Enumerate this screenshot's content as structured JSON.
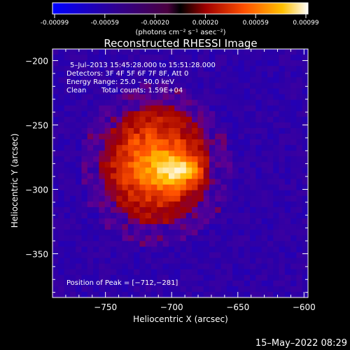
{
  "colorbar": {
    "ticks": [
      "-0.00099",
      "-0.00059",
      "-0.00020",
      "0.00020",
      "0.00059",
      "0.00099"
    ],
    "unit_label": "(photons cm⁻² s⁻¹ asec⁻²)"
  },
  "chart_data": {
    "type": "heatmap",
    "title": "Reconstructed RHESSI Image",
    "xlabel": "Heliocentric X (arcsec)",
    "ylabel": "Heliocentric Y (arcsec)",
    "xlim": [
      -790,
      -597
    ],
    "ylim": [
      -384,
      -191
    ],
    "x_ticks": [
      -750,
      -700,
      -650,
      -600
    ],
    "x_tick_labels": [
      "−750",
      "−700",
      "−650",
      "−600"
    ],
    "y_ticks": [
      -200,
      -250,
      -300,
      -350
    ],
    "y_tick_labels": [
      "−200",
      "−250",
      "−300",
      "−350"
    ],
    "value_range": [
      -0.00099,
      0.00099
    ],
    "peak_position": [
      -712,
      -281
    ],
    "colormap": [
      "#0000ff",
      "#2a00a8",
      "#600090",
      "#a00000",
      "#ff5000",
      "#ffc000",
      "#ffffff"
    ],
    "annotations": {
      "time": "5–Jul–2013 15:45:28.000 to 15:51:28.000",
      "detectors": "Detectors: 3F 4F 5F 6F 7F 8F, Att 0",
      "energy": "Energy Range: 25.0 – 50.0 keV",
      "clean_label": "Clean",
      "total_counts": "Total counts: 1.59E+04",
      "peak_label": "Position of Peak = [−712,−281]"
    }
  },
  "footer": {
    "timestamp": "15–May–2022 08:29"
  }
}
